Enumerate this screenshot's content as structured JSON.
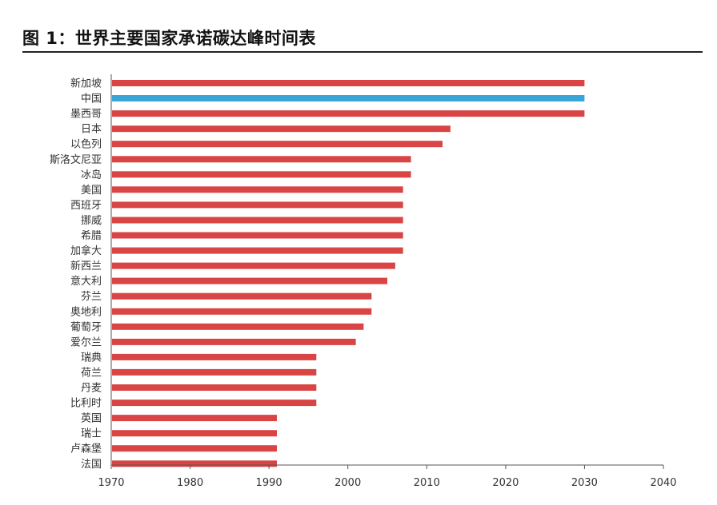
{
  "figure_title": "图 1：世界主要国家承诺碳达峰时间表",
  "colors": {
    "default_bar": "#d94545",
    "highlight_bar": "#3aa6d6",
    "axis": "#555555"
  },
  "chart_data": {
    "type": "bar",
    "orientation": "horizontal",
    "title": "图 1：世界主要国家承诺碳达峰时间表",
    "xlabel": "",
    "ylabel": "",
    "xlim": [
      1970,
      2040
    ],
    "xticks": [
      "1970",
      "1980",
      "1990",
      "2000",
      "2010",
      "2020",
      "2030",
      "2040"
    ],
    "grid": false,
    "highlight": "中国",
    "categories": [
      "新加坡",
      "中国",
      "墨西哥",
      "日本",
      "以色列",
      "斯洛文尼亚",
      "冰岛",
      "美国",
      "西班牙",
      "挪威",
      "希腊",
      "加拿大",
      "新西兰",
      "意大利",
      "芬兰",
      "奥地利",
      "葡萄牙",
      "爱尔兰",
      "瑞典",
      "荷兰",
      "丹麦",
      "比利时",
      "英国",
      "瑞士",
      "卢森堡",
      "法国"
    ],
    "values": [
      2030,
      2030,
      2030,
      2013,
      2012,
      2008,
      2008,
      2007,
      2007,
      2007,
      2007,
      2007,
      2006,
      2005,
      2003,
      2003,
      2002,
      2001,
      1996,
      1996,
      1996,
      1996,
      1991,
      1991,
      1991,
      1991
    ]
  }
}
